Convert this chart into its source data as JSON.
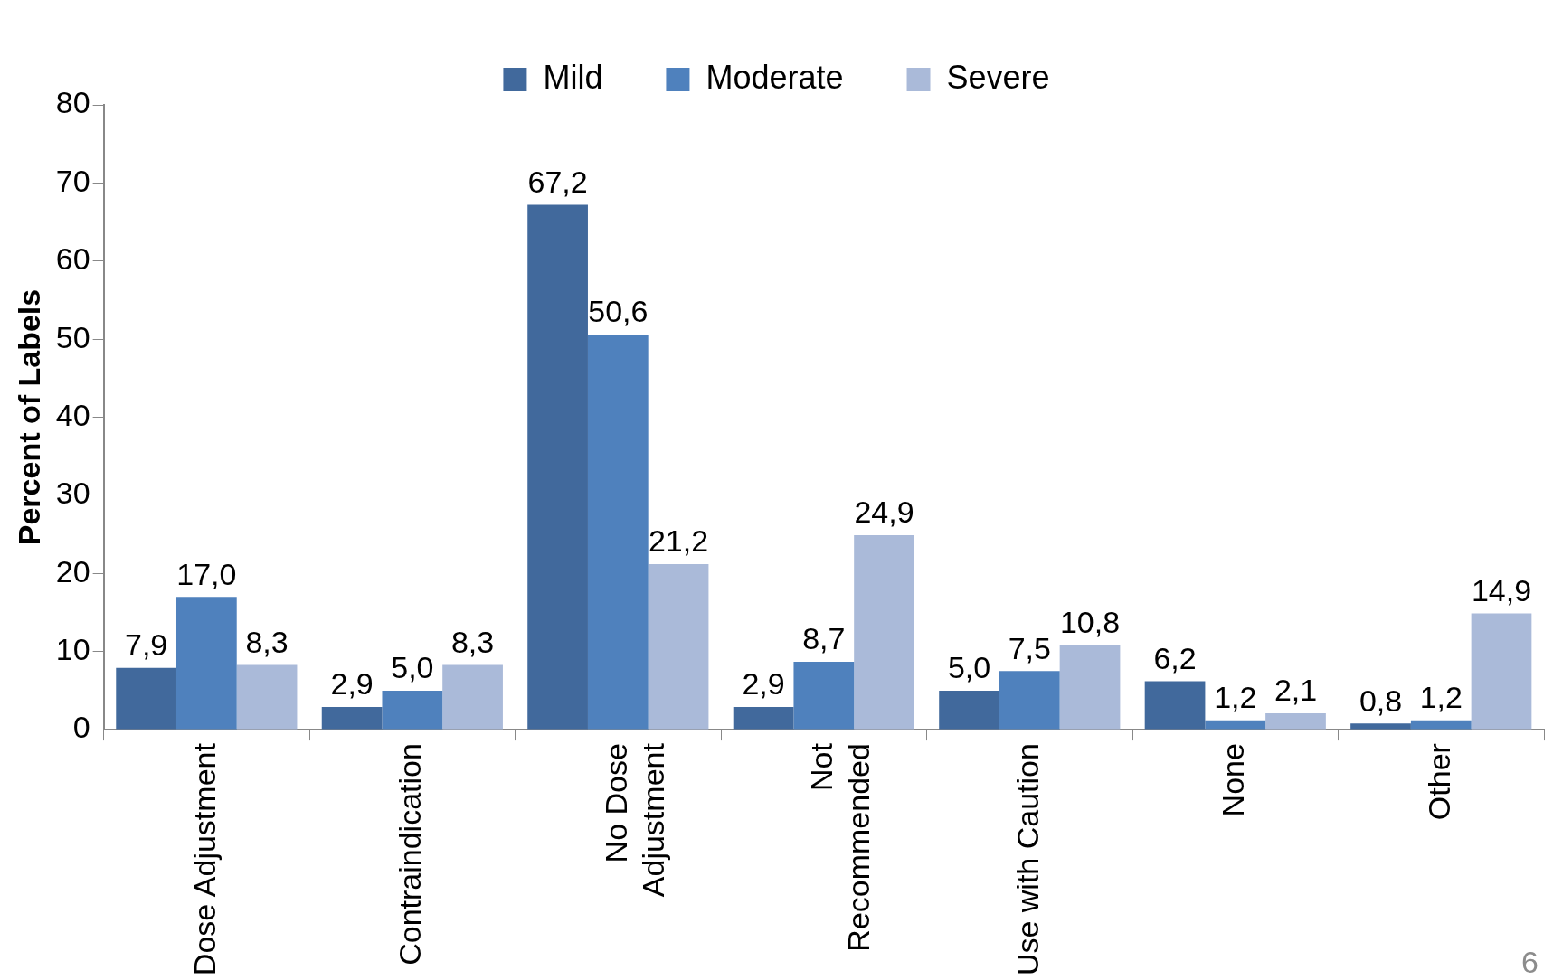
{
  "chart_data": {
    "type": "bar",
    "ylabel": "Percent of Labels",
    "categories": [
      "Dose Adjustment",
      "Contraindication",
      "No Dose\nAdjustment",
      "Not\nRecommended",
      "Use with Caution",
      "None",
      "Other"
    ],
    "series": [
      {
        "name": "Mild",
        "color": "#41699c",
        "values": [
          7.9,
          2.9,
          67.2,
          2.9,
          5.0,
          6.2,
          0.8
        ],
        "value_labels": [
          "7,9",
          "2,9",
          "67,2",
          "2,9",
          "5,0",
          "6,2",
          "0,8"
        ]
      },
      {
        "name": "Moderate",
        "color": "#4f81bd",
        "values": [
          17.0,
          5.0,
          50.6,
          8.7,
          7.5,
          1.2,
          1.2
        ],
        "value_labels": [
          "17,0",
          "5,0",
          "50,6",
          "8,7",
          "7,5",
          "1,2",
          "1,2"
        ]
      },
      {
        "name": "Severe",
        "color": "#aabad9",
        "values": [
          8.3,
          8.3,
          21.2,
          24.9,
          10.8,
          2.1,
          14.9
        ],
        "value_labels": [
          "8,3",
          "8,3",
          "21,2",
          "24,9",
          "10,8",
          "2,1",
          "14,9"
        ]
      }
    ],
    "ylim": [
      0,
      80
    ],
    "yticks": [
      0,
      10,
      20,
      30,
      40,
      50,
      60,
      70,
      80
    ],
    "grid": false,
    "legend": "top",
    "annotations": [
      "6"
    ]
  }
}
